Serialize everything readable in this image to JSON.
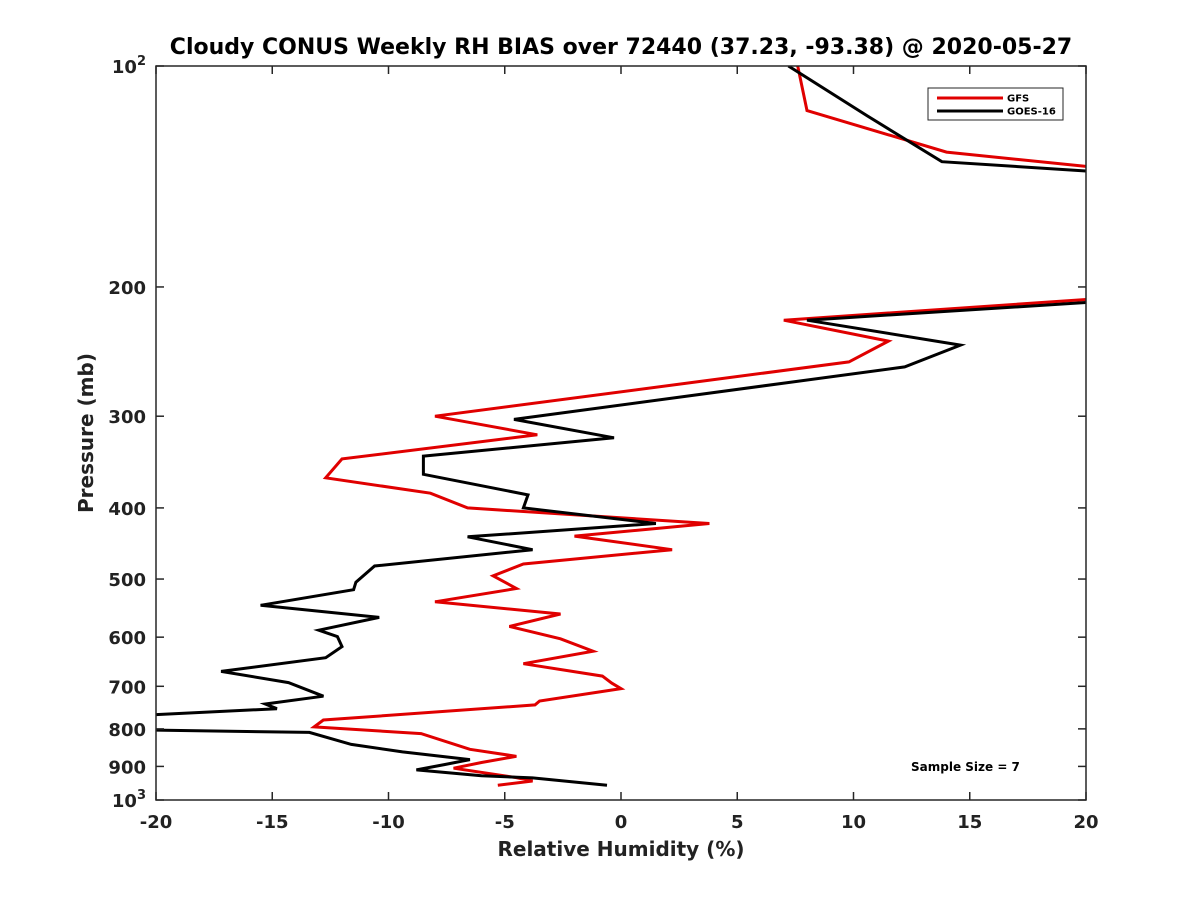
{
  "chart_data": {
    "type": "line",
    "title": "Cloudy CONUS Weekly RH BIAS over 72440 (37.23, -93.38) @ 2020-05-27",
    "xlabel": "Relative Humidity (%)",
    "ylabel": "Pressure (mb)",
    "xlim": [
      -20,
      20
    ],
    "ylim": [
      100,
      1000
    ],
    "y_scale": "log",
    "y_reversed": true,
    "grid": false,
    "legend_position": "top-right",
    "x_ticks": [
      -20,
      -15,
      -10,
      -5,
      0,
      5,
      10,
      15,
      20
    ],
    "x_tick_labels": [
      "-20",
      "-15",
      "-10",
      "-5",
      "0",
      "5",
      "10",
      "15",
      "20"
    ],
    "y_ticks": [
      {
        "value": 100,
        "base": "10",
        "exp": "2"
      },
      {
        "value": 200,
        "label": "200"
      },
      {
        "value": 300,
        "label": "300"
      },
      {
        "value": 400,
        "label": "400"
      },
      {
        "value": 500,
        "label": "500"
      },
      {
        "value": 600,
        "label": "600"
      },
      {
        "value": 700,
        "label": "700"
      },
      {
        "value": 800,
        "label": "800"
      },
      {
        "value": 900,
        "label": "900"
      },
      {
        "value": 1000,
        "base": "10",
        "exp": "3"
      }
    ],
    "annotation": "Sample Size = 7",
    "series": [
      {
        "name": "GFS",
        "color": "#e00000",
        "segments": [
          [
            [
              7.6,
              100
            ],
            [
              8.0,
              115
            ],
            [
              14.0,
              131
            ],
            [
              20.0,
              137
            ]
          ],
          [
            [
              20.0,
              208
            ],
            [
              7.0,
              222
            ],
            [
              11.5,
              237
            ],
            [
              9.8,
              253
            ],
            [
              -8.0,
              300
            ],
            [
              -3.6,
              318
            ],
            [
              -12.0,
              343
            ],
            [
              -12.7,
              364
            ],
            [
              -8.2,
              382
            ],
            [
              -6.6,
              400
            ],
            [
              3.8,
              420
            ],
            [
              -2.0,
              437
            ],
            [
              2.2,
              456
            ],
            [
              -4.2,
              477
            ],
            [
              -5.5,
              495
            ],
            [
              -4.5,
              515
            ],
            [
              -8.0,
              537
            ],
            [
              -2.6,
              558
            ],
            [
              -4.8,
              580
            ],
            [
              -2.6,
              603
            ],
            [
              -1.2,
              627
            ],
            [
              -4.2,
              652
            ],
            [
              -0.8,
              678
            ],
            [
              -0.4,
              693
            ],
            [
              0.0,
              705
            ],
            [
              -3.5,
              733
            ],
            [
              -3.7,
              742
            ],
            [
              -12.8,
              778
            ],
            [
              -13.2,
              795
            ],
            [
              -8.6,
              812
            ],
            [
              -6.5,
              853
            ],
            [
              -4.5,
              872
            ],
            [
              -6.0,
              889
            ],
            [
              -7.2,
              905
            ],
            [
              -4.5,
              932
            ],
            [
              -3.8,
              942
            ],
            [
              -5.3,
              955
            ]
          ]
        ]
      },
      {
        "name": "GOES-16",
        "color": "#000000",
        "segments": [
          [
            [
              7.2,
              100
            ],
            [
              10.6,
              117
            ],
            [
              13.8,
              135
            ],
            [
              20.0,
              139
            ]
          ],
          [
            [
              20.0,
              210
            ],
            [
              8.0,
              222
            ],
            [
              14.6,
              240
            ],
            [
              12.2,
              257
            ],
            [
              -4.6,
              303
            ],
            [
              -0.3,
              321
            ],
            [
              -8.5,
              340
            ],
            [
              -8.5,
              360
            ],
            [
              -4.0,
              384
            ],
            [
              -4.2,
              400
            ],
            [
              1.5,
              420
            ],
            [
              -6.6,
              438
            ],
            [
              -3.8,
              456
            ],
            [
              -10.6,
              480
            ],
            [
              -11.4,
              505
            ],
            [
              -11.5,
              517
            ],
            [
              -15.5,
              543
            ],
            [
              -10.4,
              564
            ],
            [
              -13.0,
              587
            ],
            [
              -12.2,
              599
            ],
            [
              -12.0,
              618
            ],
            [
              -12.7,
              640
            ],
            [
              -17.2,
              668
            ],
            [
              -14.3,
              692
            ],
            [
              -12.8,
              722
            ],
            [
              -15.3,
              740
            ],
            [
              -14.8,
              751
            ],
            [
              -20.0,
              765
            ]
          ],
          [
            [
              -20.0,
              803
            ],
            [
              -13.4,
              809
            ],
            [
              -11.6,
              840
            ],
            [
              -9.4,
              860
            ],
            [
              -6.5,
              881
            ],
            [
              -7.6,
              895
            ],
            [
              -8.8,
              910
            ],
            [
              -6.0,
              927
            ],
            [
              -3.8,
              933
            ],
            [
              -0.6,
              955
            ]
          ]
        ]
      }
    ]
  }
}
